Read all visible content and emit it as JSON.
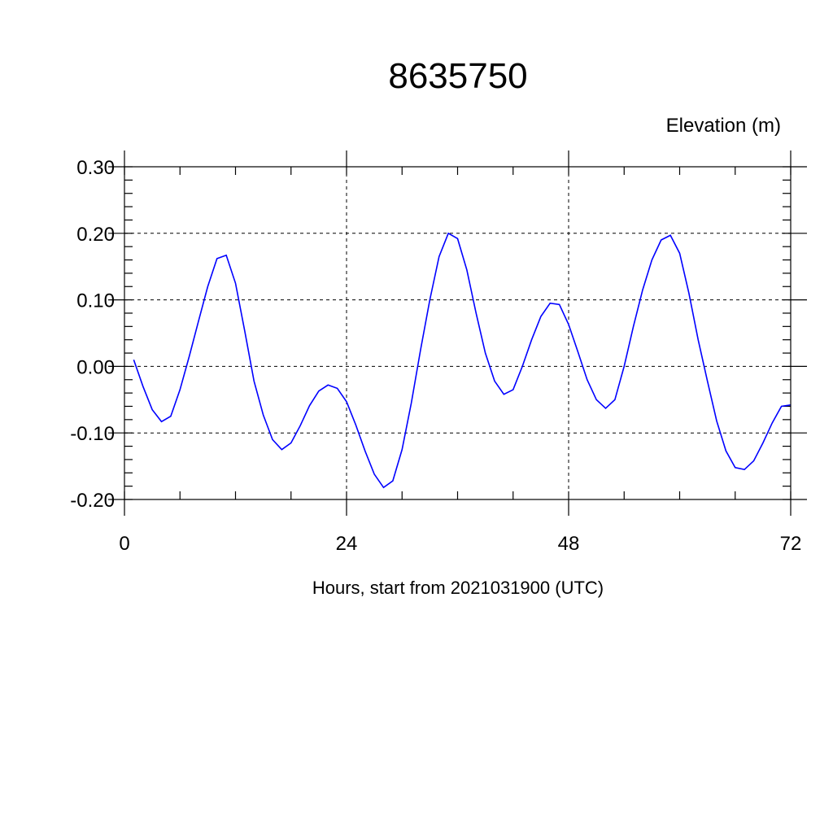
{
  "chart_data": {
    "type": "line",
    "title": "8635750",
    "ylabel": "Elevation (m)",
    "xlabel": "Hours, start from 2021031900 (UTC)",
    "xlim": [
      0,
      72
    ],
    "ylim": [
      -0.2,
      0.3
    ],
    "xticks": [
      0,
      24,
      48,
      72
    ],
    "xtick_labels": [
      "0",
      "24",
      "48",
      "72"
    ],
    "yticks": [
      -0.2,
      -0.1,
      0.0,
      0.1,
      0.2,
      0.3
    ],
    "ytick_labels": [
      "-0.20",
      "-0.10",
      "0.00",
      "0.10",
      "0.20",
      "0.30"
    ],
    "grid": true,
    "series": [
      {
        "color": "#0000ff",
        "x": [
          1,
          2,
          3,
          4,
          5,
          6,
          7,
          8,
          9,
          10,
          11,
          12,
          13,
          14,
          15,
          16,
          17,
          18,
          19,
          20,
          21,
          22,
          23,
          24,
          25,
          26,
          27,
          28,
          29,
          30,
          31,
          32,
          33,
          34,
          35,
          36,
          37,
          38,
          39,
          40,
          41,
          42,
          43,
          44,
          45,
          46,
          47,
          48,
          49,
          50,
          51,
          52,
          53,
          54,
          55,
          56,
          57,
          58,
          59,
          60,
          61,
          62,
          63,
          64,
          65,
          66,
          67,
          68,
          69,
          70,
          71,
          72
        ],
        "values": [
          0.01,
          -0.03,
          -0.065,
          -0.083,
          -0.075,
          -0.035,
          0.015,
          0.068,
          0.12,
          0.162,
          0.167,
          0.125,
          0.053,
          -0.022,
          -0.073,
          -0.11,
          -0.125,
          -0.115,
          -0.089,
          -0.059,
          -0.037,
          -0.028,
          -0.033,
          -0.053,
          -0.088,
          -0.127,
          -0.162,
          -0.182,
          -0.172,
          -0.125,
          -0.055,
          0.025,
          0.1,
          0.165,
          0.2,
          0.192,
          0.145,
          0.08,
          0.02,
          -0.022,
          -0.042,
          -0.035,
          0.0,
          0.04,
          0.075,
          0.095,
          0.093,
          0.063,
          0.022,
          -0.02,
          -0.05,
          -0.063,
          -0.05,
          0.0,
          0.06,
          0.115,
          0.16,
          0.19,
          0.197,
          0.17,
          0.11,
          0.04,
          -0.022,
          -0.082,
          -0.127,
          -0.152,
          -0.155,
          -0.142,
          -0.115,
          -0.085,
          -0.06,
          -0.058
        ]
      }
    ]
  }
}
